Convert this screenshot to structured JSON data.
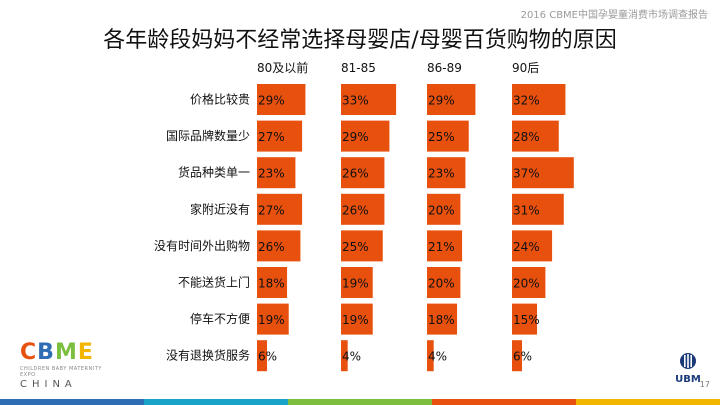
{
  "report_tag": "2016 CBME中国孕婴童消费市场调查报告",
  "title": "各年龄段妈妈不经常选择母婴店/母婴百货购物的原因",
  "page_number": "17",
  "logo": {
    "letters": "CBME",
    "subtitle": "CHILDREN BABY MATERNITY EXPO",
    "country": "CHINA"
  },
  "ubm": {
    "text": "UBM"
  },
  "colors": {
    "bar": "#e8500e",
    "footer": [
      "#2e6db4",
      "#1aa3c8",
      "#7cbf3f",
      "#e8500e",
      "#f2b600"
    ],
    "logo": [
      "#e8500e",
      "#2e6db4",
      "#7cbf3f",
      "#f2b600"
    ]
  },
  "chart_data": {
    "type": "bar",
    "orientation": "horizontal",
    "layout": "small-multiples",
    "title": "各年龄段妈妈不经常选择母婴店/母婴百货购物的原因",
    "categories": [
      "价格比较贵",
      "国际品牌数量少",
      "货品种类单一",
      "家附近没有",
      "没有时间外出购物",
      "不能送货上门",
      "停车不方便",
      "没有退换货服务"
    ],
    "unit": "%",
    "series": [
      {
        "name": "80及以前",
        "values": [
          29,
          27,
          23,
          27,
          26,
          18,
          19,
          6
        ]
      },
      {
        "name": "81-85",
        "values": [
          33,
          29,
          26,
          26,
          25,
          19,
          19,
          4
        ]
      },
      {
        "name": "86-89",
        "values": [
          29,
          25,
          23,
          20,
          21,
          20,
          18,
          4
        ]
      },
      {
        "name": "90后",
        "values": [
          32,
          28,
          37,
          31,
          24,
          20,
          15,
          6
        ]
      }
    ]
  }
}
